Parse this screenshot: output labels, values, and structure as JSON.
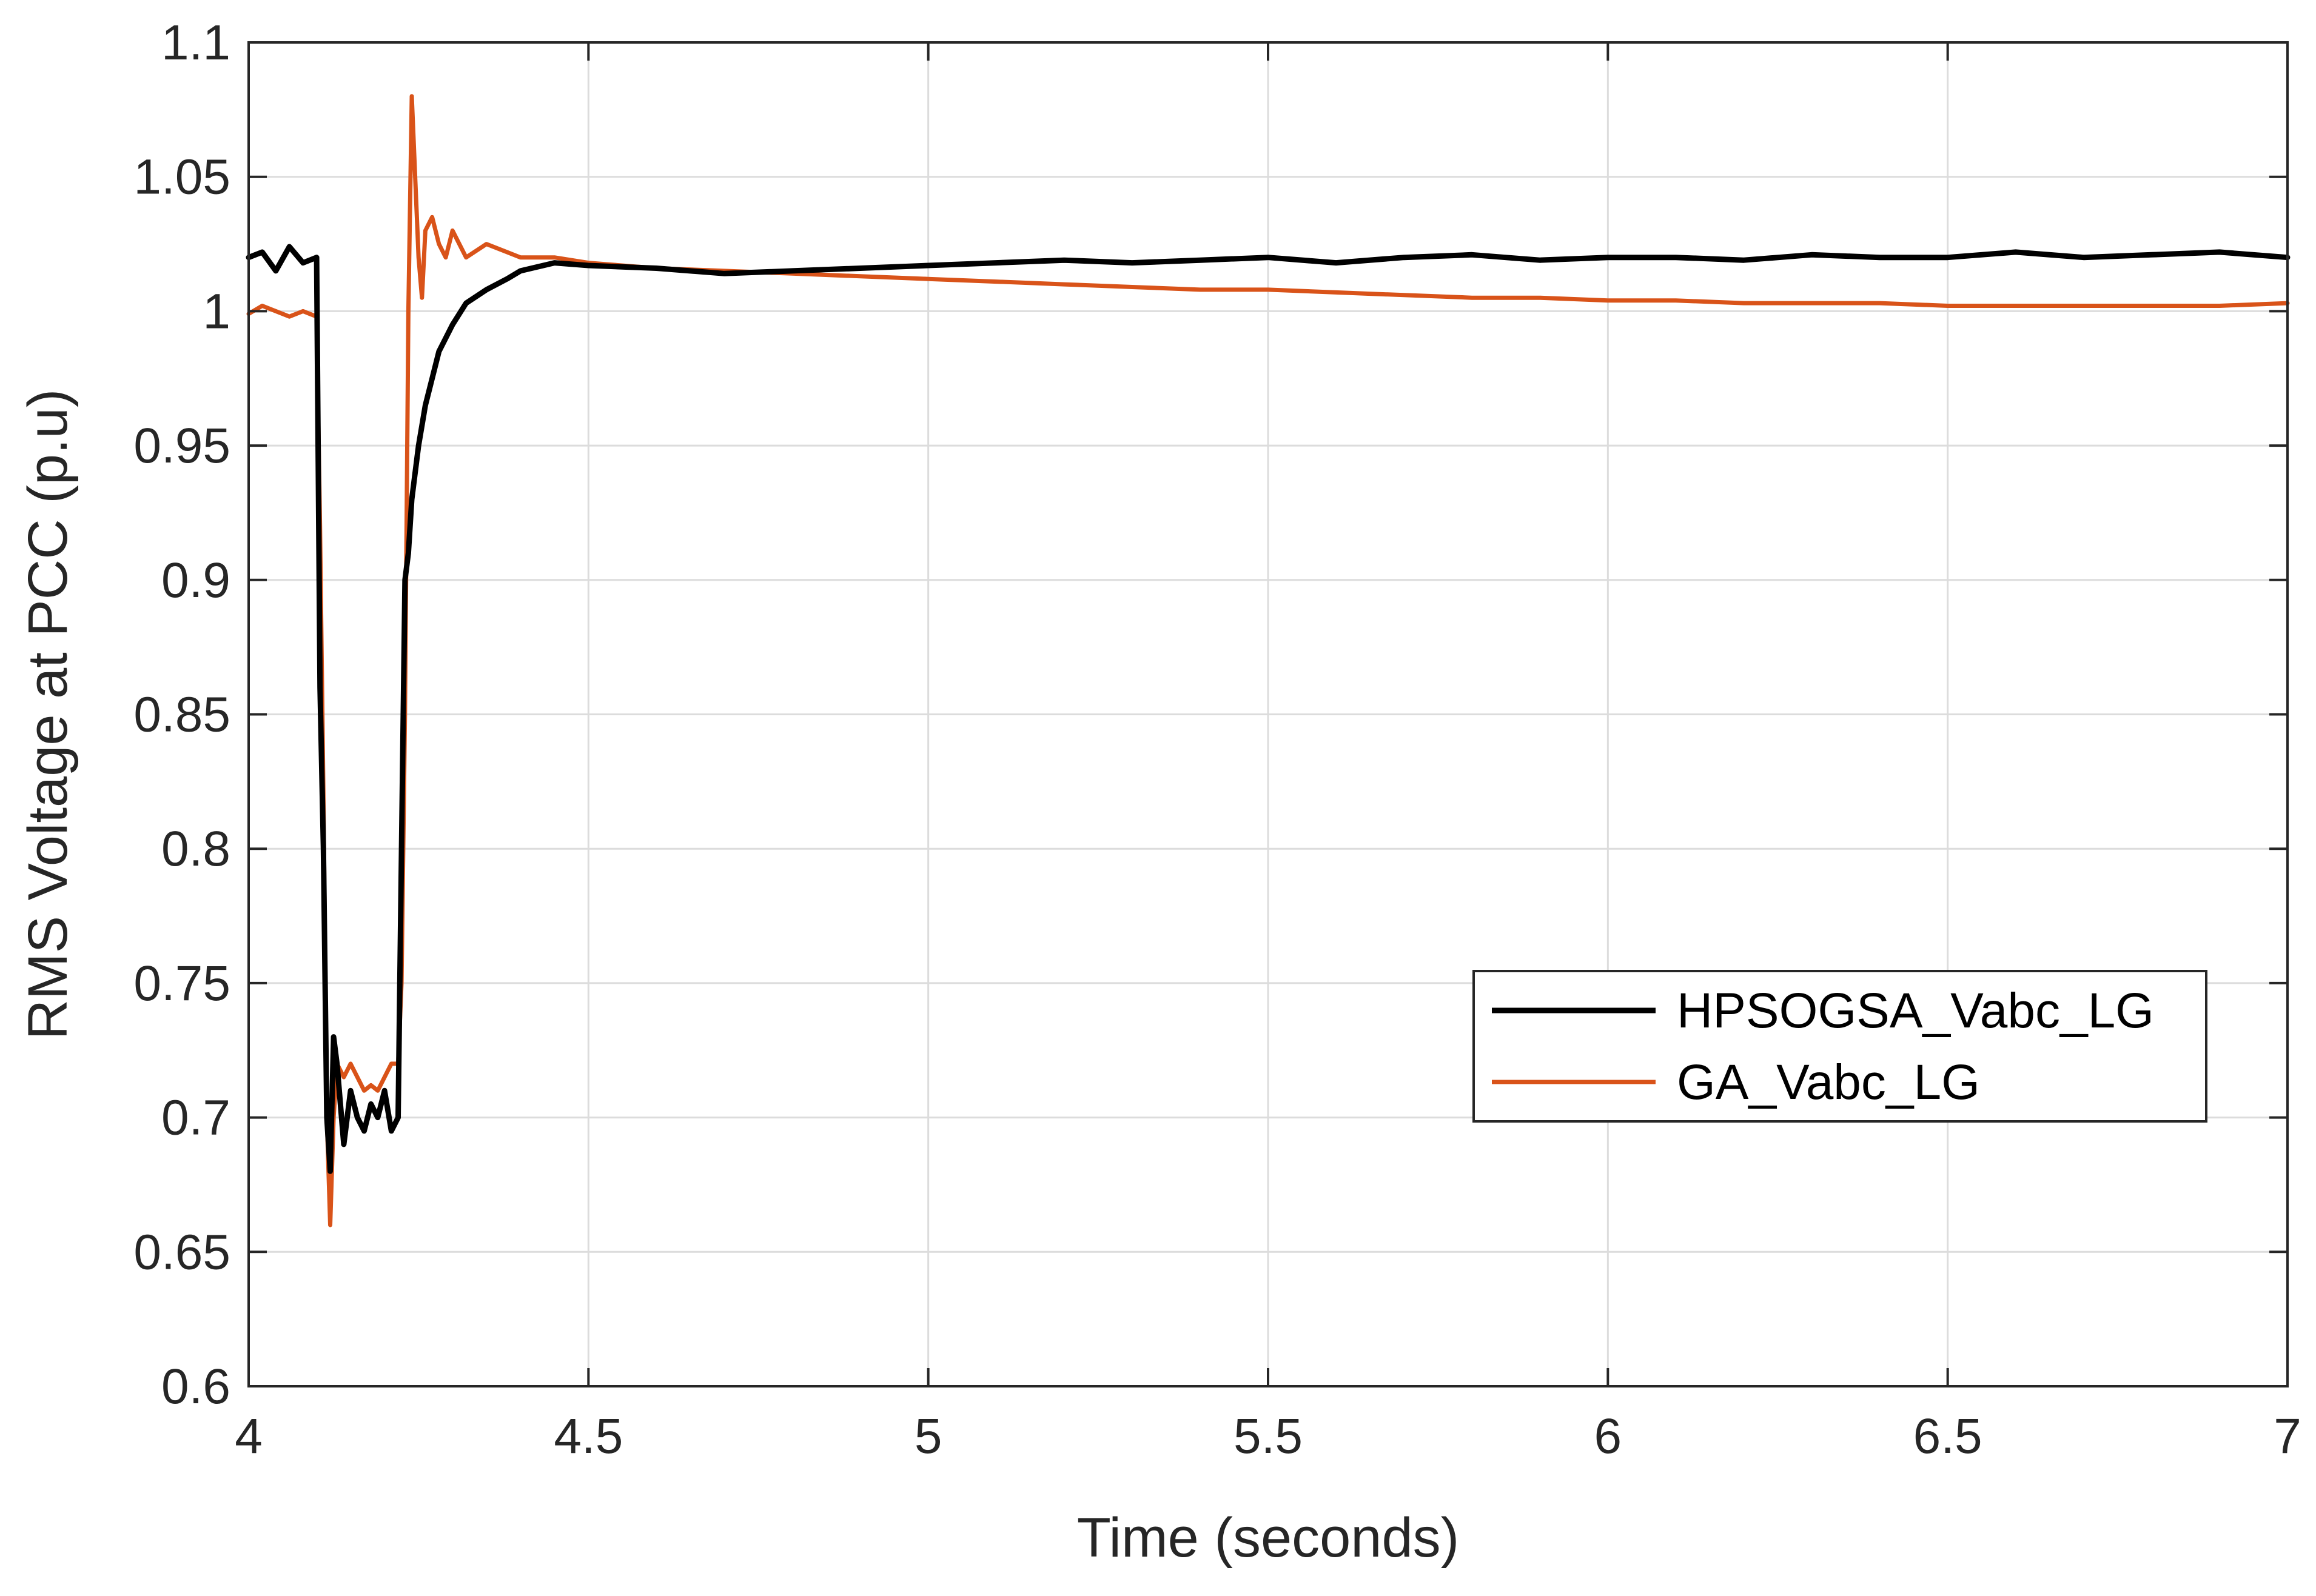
{
  "chart_data": {
    "type": "line",
    "xlabel": "Time (seconds)",
    "ylabel": "RMS Voltage at PCC (p.u)",
    "xlim": [
      4,
      7
    ],
    "ylim": [
      0.6,
      1.1
    ],
    "x_ticks": [
      4,
      4.5,
      5,
      5.5,
      6,
      6.5,
      7
    ],
    "x_tick_labels": [
      "4",
      "4.5",
      "5",
      "5.5",
      "6",
      "6.5",
      "7"
    ],
    "y_ticks": [
      0.6,
      0.65,
      0.7,
      0.75,
      0.8,
      0.85,
      0.9,
      0.95,
      1,
      1.05,
      1.1
    ],
    "y_tick_labels": [
      "0.6",
      "0.65",
      "0.7",
      "0.75",
      "0.8",
      "0.85",
      "0.9",
      "0.95",
      "1",
      "1.05",
      "1.1"
    ],
    "grid": true,
    "legend_position": "center-right",
    "series": [
      {
        "name": "HPSOGSA_Vabc_LG",
        "color": "#000000",
        "x": [
          4.0,
          4.02,
          4.04,
          4.06,
          4.08,
          4.1,
          4.105,
          4.11,
          4.115,
          4.12,
          4.125,
          4.13,
          4.14,
          4.15,
          4.16,
          4.17,
          4.18,
          4.19,
          4.2,
          4.21,
          4.22,
          4.225,
          4.23,
          4.235,
          4.24,
          4.25,
          4.26,
          4.27,
          4.28,
          4.3,
          4.32,
          4.35,
          4.38,
          4.4,
          4.45,
          4.5,
          4.6,
          4.7,
          4.8,
          4.9,
          5.0,
          5.1,
          5.2,
          5.3,
          5.4,
          5.5,
          5.6,
          5.7,
          5.8,
          5.9,
          6.0,
          6.1,
          6.2,
          6.3,
          6.4,
          6.5,
          6.6,
          6.7,
          6.8,
          6.9,
          7.0
        ],
        "y": [
          1.02,
          1.022,
          1.015,
          1.024,
          1.018,
          1.02,
          0.86,
          0.8,
          0.7,
          0.68,
          0.73,
          0.72,
          0.69,
          0.71,
          0.7,
          0.695,
          0.705,
          0.7,
          0.71,
          0.695,
          0.7,
          0.8,
          0.9,
          0.91,
          0.93,
          0.95,
          0.965,
          0.975,
          0.985,
          0.995,
          1.003,
          1.008,
          1.012,
          1.015,
          1.018,
          1.017,
          1.016,
          1.014,
          1.015,
          1.016,
          1.017,
          1.018,
          1.019,
          1.018,
          1.019,
          1.02,
          1.018,
          1.02,
          1.021,
          1.019,
          1.02,
          1.02,
          1.019,
          1.021,
          1.02,
          1.02,
          1.022,
          1.02,
          1.021,
          1.022,
          1.02
        ]
      },
      {
        "name": "GA_Vabc_LG",
        "color": "#d95319",
        "x": [
          4.0,
          4.02,
          4.04,
          4.06,
          4.08,
          4.1,
          4.105,
          4.11,
          4.115,
          4.12,
          4.125,
          4.13,
          4.14,
          4.15,
          4.16,
          4.17,
          4.18,
          4.19,
          4.2,
          4.21,
          4.22,
          4.225,
          4.23,
          4.235,
          4.24,
          4.245,
          4.25,
          4.255,
          4.26,
          4.27,
          4.28,
          4.29,
          4.3,
          4.32,
          4.35,
          4.38,
          4.4,
          4.45,
          4.5,
          4.6,
          4.7,
          4.8,
          4.9,
          5.0,
          5.1,
          5.2,
          5.3,
          5.4,
          5.5,
          5.6,
          5.7,
          5.8,
          5.9,
          6.0,
          6.1,
          6.2,
          6.3,
          6.4,
          6.5,
          6.6,
          6.7,
          6.8,
          6.9,
          7.0
        ],
        "y": [
          0.999,
          1.002,
          1.0,
          0.998,
          1.0,
          0.998,
          0.92,
          0.82,
          0.7,
          0.66,
          0.7,
          0.72,
          0.715,
          0.72,
          0.715,
          0.71,
          0.712,
          0.71,
          0.715,
          0.72,
          0.72,
          0.75,
          0.85,
          1.0,
          1.08,
          1.05,
          1.02,
          1.005,
          1.03,
          1.035,
          1.025,
          1.02,
          1.03,
          1.02,
          1.025,
          1.022,
          1.02,
          1.02,
          1.018,
          1.016,
          1.015,
          1.014,
          1.013,
          1.012,
          1.011,
          1.01,
          1.009,
          1.008,
          1.008,
          1.007,
          1.006,
          1.005,
          1.005,
          1.004,
          1.004,
          1.003,
          1.003,
          1.003,
          1.002,
          1.002,
          1.002,
          1.002,
          1.002,
          1.003
        ]
      }
    ]
  }
}
